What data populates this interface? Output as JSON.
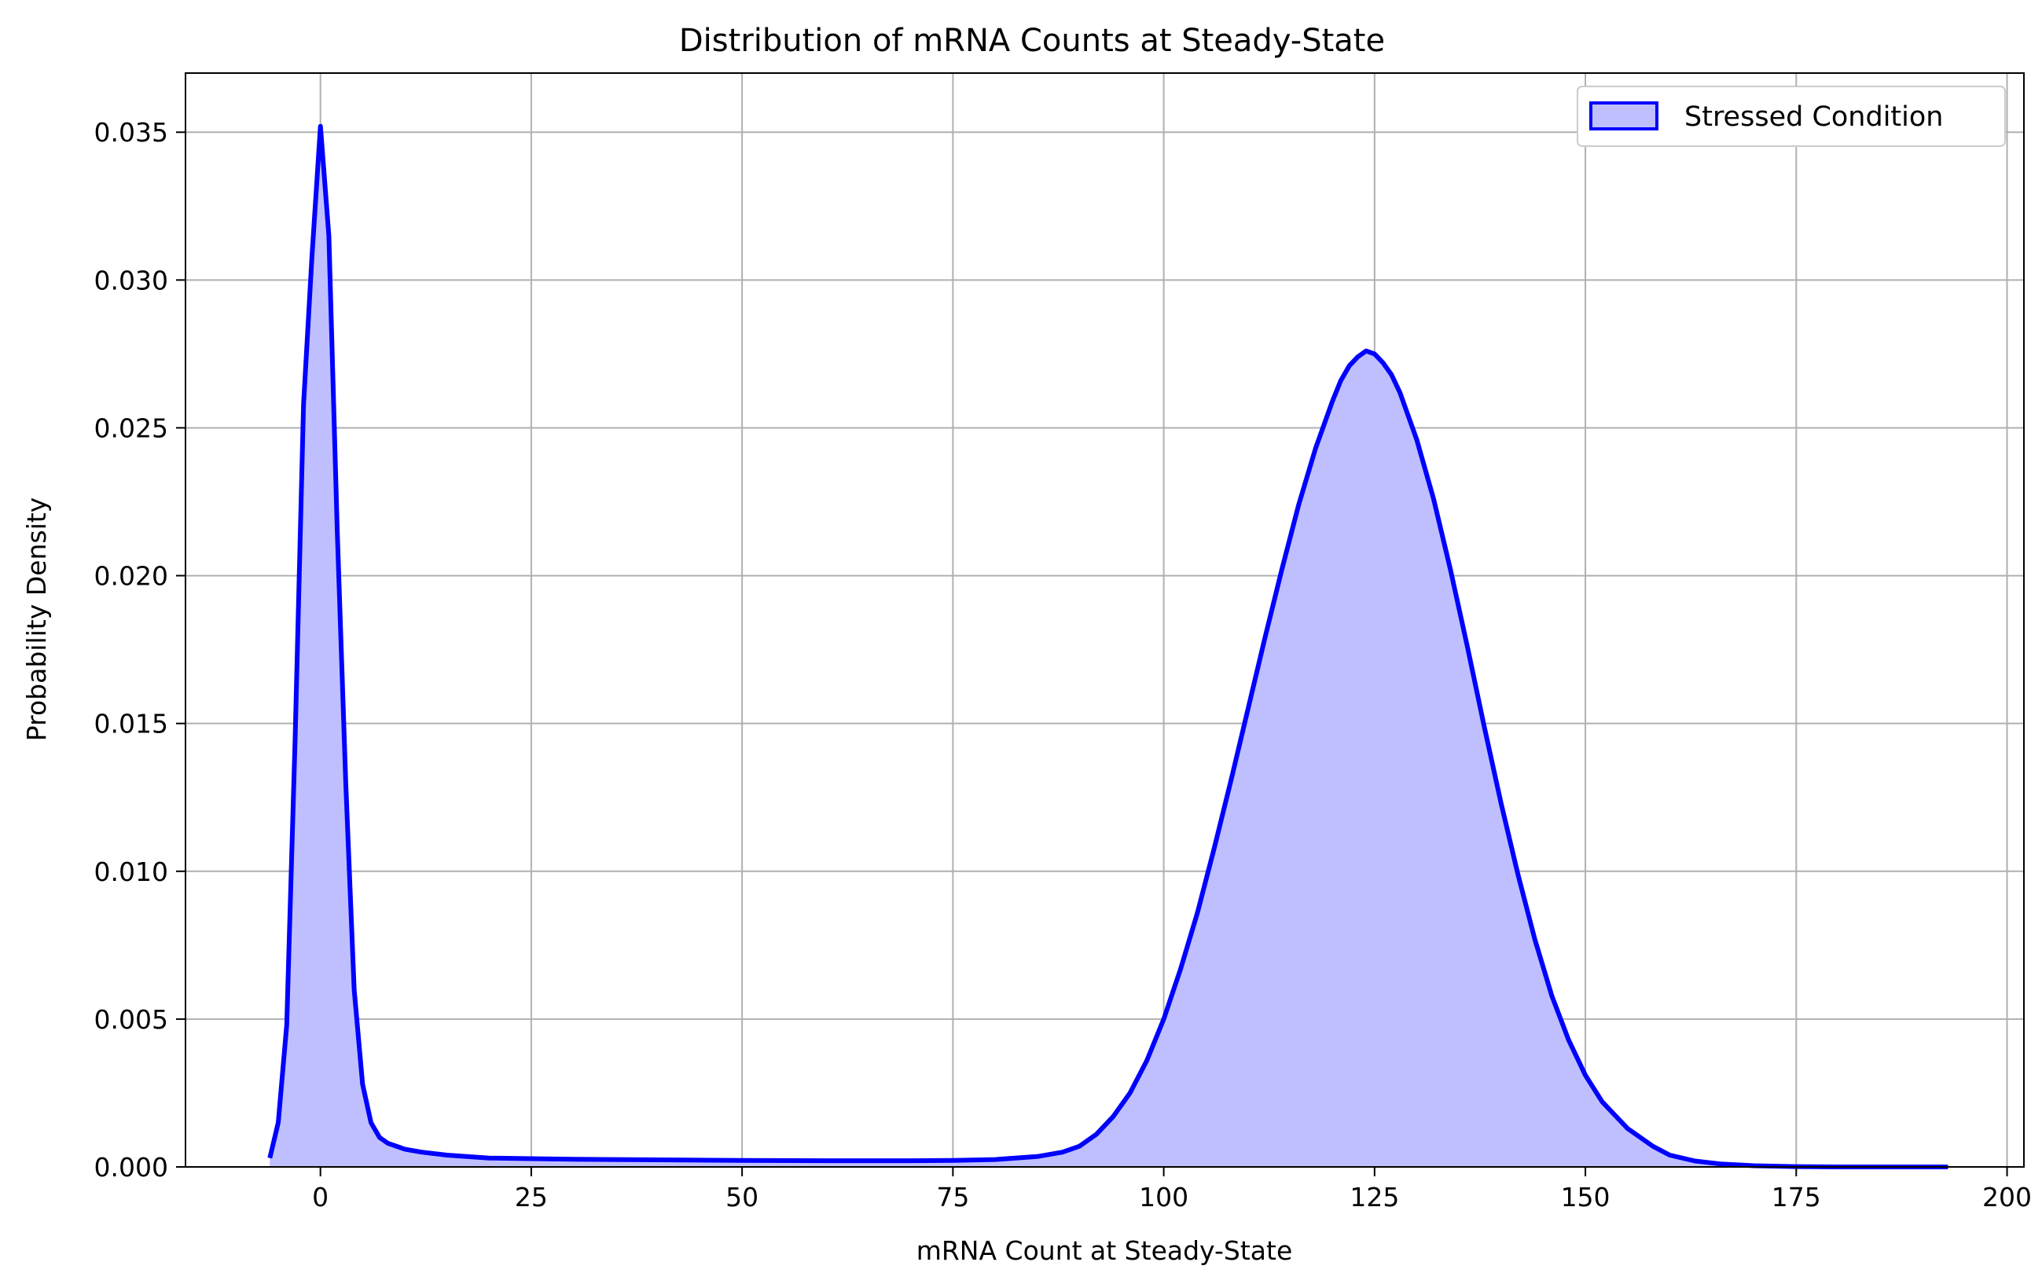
{
  "chart_data": {
    "type": "area",
    "title": "Distribution of mRNA Counts at Steady-State",
    "xlabel": "mRNA Count at Steady-State",
    "ylabel": "Probability Density",
    "xlim": [
      -16,
      202
    ],
    "ylim": [
      0,
      0.037
    ],
    "xticks": [
      0,
      25,
      50,
      75,
      100,
      125,
      150,
      175,
      200
    ],
    "yticks": [
      "0.000",
      "0.005",
      "0.010",
      "0.015",
      "0.020",
      "0.025",
      "0.030",
      "0.035"
    ],
    "grid": true,
    "legend_position": "top-right",
    "colors": {
      "line": "#0000ff",
      "fill": "#bfbfff",
      "grid": "#b0b0b0"
    },
    "series": [
      {
        "name": "Stressed Condition",
        "x": [
          -6,
          -5,
          -4,
          -3,
          -2,
          -1,
          0,
          1,
          2,
          3,
          4,
          5,
          6,
          7,
          8,
          10,
          12,
          15,
          20,
          25,
          30,
          40,
          50,
          60,
          70,
          75,
          80,
          85,
          88,
          90,
          92,
          94,
          96,
          98,
          100,
          102,
          104,
          106,
          108,
          110,
          112,
          114,
          116,
          118,
          120,
          121,
          122,
          123,
          124,
          125,
          126,
          127,
          128,
          130,
          132,
          134,
          136,
          138,
          140,
          142,
          144,
          146,
          148,
          150,
          152,
          155,
          158,
          160,
          163,
          166,
          170,
          175,
          180,
          193
        ],
        "y": [
          0.0003,
          0.0015,
          0.0048,
          0.0145,
          0.0258,
          0.0308,
          0.0352,
          0.0315,
          0.0215,
          0.013,
          0.006,
          0.0028,
          0.0015,
          0.001,
          0.0008,
          0.0006,
          0.0005,
          0.0004,
          0.0003,
          0.00028,
          0.00026,
          0.00024,
          0.00022,
          0.00021,
          0.00021,
          0.00022,
          0.00025,
          0.00035,
          0.0005,
          0.0007,
          0.0011,
          0.0017,
          0.0025,
          0.0036,
          0.005,
          0.0067,
          0.0086,
          0.0108,
          0.0131,
          0.0155,
          0.0179,
          0.0202,
          0.0224,
          0.0243,
          0.0259,
          0.0266,
          0.0271,
          0.0274,
          0.0276,
          0.0275,
          0.0272,
          0.0268,
          0.0262,
          0.0246,
          0.0226,
          0.0202,
          0.0176,
          0.0149,
          0.0123,
          0.0099,
          0.0077,
          0.0058,
          0.0043,
          0.0031,
          0.0022,
          0.0013,
          0.0007,
          0.0004,
          0.0002,
          0.0001,
          4e-05,
          1e-05,
          0.0,
          0.0
        ]
      }
    ]
  }
}
